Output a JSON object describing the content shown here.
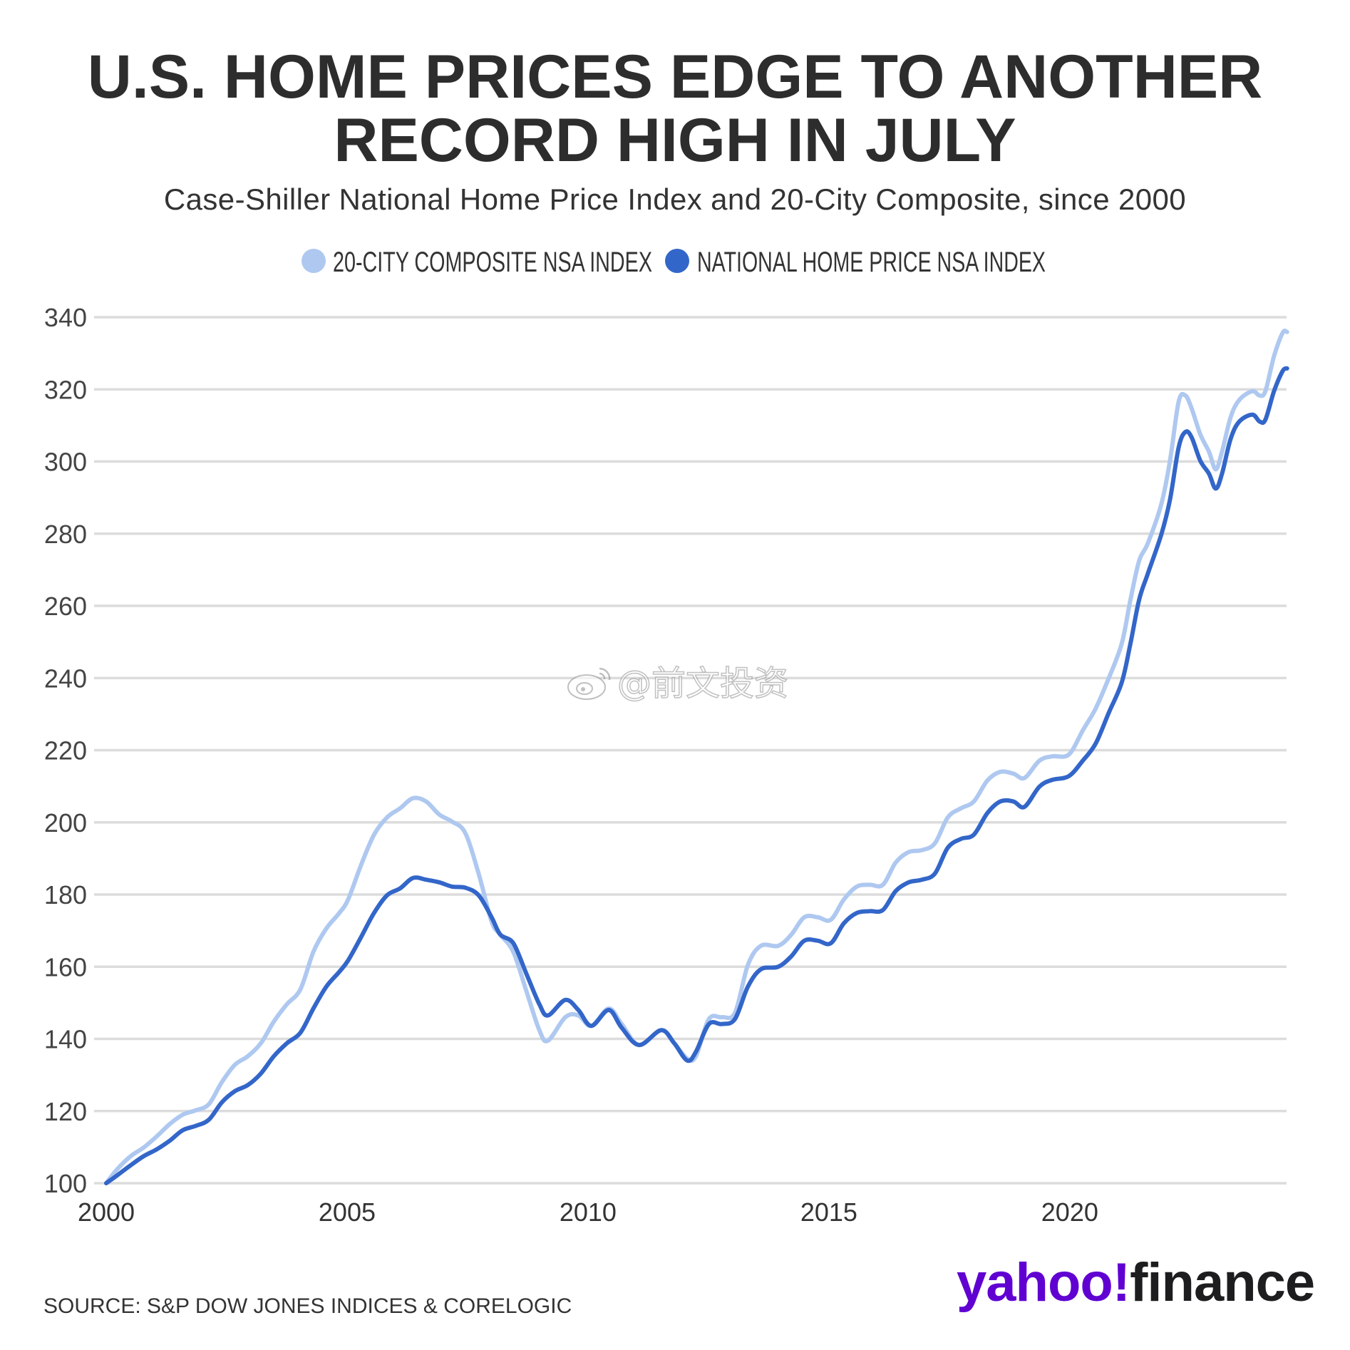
{
  "source": "SOURCE: S&P DOW JONES INDICES & CORELOGIC",
  "logo": {
    "brand": "yahoo!",
    "product": "finance",
    "brand_color": "#6001d2",
    "icon": "yahoo-finance-logo"
  },
  "watermark": {
    "text": "@前文投资",
    "icon": "weibo-icon"
  },
  "chart_data": {
    "type": "line",
    "title": "U.S. HOME PRICES EDGE TO ANOTHER RECORD HIGH IN JULY",
    "subtitle": "Case-Shiller National Home Price Index and 20-City Composite, since 2000",
    "xlim": [
      2000,
      2024.5
    ],
    "ylim": [
      100,
      340
    ],
    "x_ticks": [
      2000,
      2005,
      2010,
      2015,
      2020
    ],
    "y_ticks": [
      100,
      120,
      140,
      160,
      180,
      200,
      220,
      240,
      260,
      280,
      300,
      320,
      340
    ],
    "grid": "horizontal",
    "legend": "top-center",
    "x": [
      2000.0,
      2000.23,
      2000.51,
      2000.78,
      2001.05,
      2001.32,
      2001.59,
      2001.86,
      2002.13,
      2002.4,
      2002.67,
      2002.94,
      2003.21,
      2003.48,
      2003.75,
      2004.03,
      2004.3,
      2004.57,
      2004.84,
      2005.02,
      2005.29,
      2005.56,
      2005.83,
      2006.1,
      2006.37,
      2006.64,
      2006.91,
      2007.18,
      2007.45,
      2007.73,
      2008.0,
      2008.18,
      2008.45,
      2008.72,
      2008.99,
      2009.17,
      2009.53,
      2009.8,
      2010.07,
      2010.43,
      2010.7,
      2011.06,
      2011.52,
      2011.79,
      2012.06,
      2012.24,
      2012.51,
      2012.78,
      2013.05,
      2013.32,
      2013.59,
      2013.95,
      2014.22,
      2014.49,
      2014.77,
      2015.04,
      2015.31,
      2015.58,
      2015.85,
      2016.12,
      2016.39,
      2016.66,
      2016.93,
      2017.2,
      2017.47,
      2017.74,
      2018.01,
      2018.29,
      2018.56,
      2018.83,
      2019.06,
      2019.37,
      2019.64,
      2019.98,
      2020.27,
      2020.54,
      2020.81,
      2021.08,
      2021.26,
      2021.44,
      2021.62,
      2021.9,
      2022.08,
      2022.26,
      2022.4,
      2022.53,
      2022.71,
      2022.89,
      2023.03,
      2023.16,
      2023.34,
      2023.52,
      2023.79,
      2023.94,
      2024.06,
      2024.24,
      2024.42,
      2024.51
    ],
    "series": [
      {
        "name": "20-CITY COMPOSITE NSA INDEX",
        "color": "#aec8f0",
        "values": [
          100.0,
          103.9,
          107.5,
          109.9,
          113.0,
          116.4,
          119.0,
          120.2,
          121.9,
          128.0,
          132.8,
          135.2,
          138.8,
          144.8,
          149.6,
          153.7,
          164.1,
          170.6,
          174.9,
          178.6,
          188.2,
          196.6,
          201.4,
          203.9,
          206.7,
          205.8,
          202.2,
          200.2,
          197.1,
          185.8,
          172.5,
          168.9,
          164.1,
          153.3,
          142.4,
          139.5,
          146.0,
          146.5,
          143.6,
          148.4,
          144.1,
          138.3,
          142.4,
          138.8,
          134.5,
          135.2,
          145.5,
          146.0,
          147.2,
          160.5,
          165.8,
          165.8,
          168.9,
          173.7,
          173.7,
          173.0,
          178.6,
          182.2,
          182.7,
          182.7,
          188.9,
          191.8,
          192.3,
          194.2,
          201.4,
          203.9,
          205.8,
          211.6,
          214.0,
          213.5,
          212.3,
          217.1,
          218.3,
          218.8,
          225.5,
          231.6,
          240.0,
          249.6,
          261.7,
          272.5,
          277.3,
          288.2,
          300.2,
          316.6,
          318.3,
          314.7,
          307.5,
          302.7,
          297.8,
          302.7,
          312.3,
          317.1,
          319.5,
          318.3,
          319.5,
          329.2,
          335.7,
          335.9
        ]
      },
      {
        "name": "NATIONAL HOME PRICE NSA INDEX",
        "color": "#3366c9",
        "values": [
          100.0,
          102.2,
          105.0,
          107.5,
          109.4,
          111.8,
          114.7,
          115.9,
          117.6,
          122.4,
          125.5,
          127.2,
          130.4,
          135.2,
          138.8,
          141.7,
          148.4,
          154.5,
          158.6,
          161.7,
          168.2,
          174.9,
          179.8,
          181.7,
          184.6,
          184.1,
          183.4,
          182.2,
          181.9,
          179.8,
          173.7,
          168.9,
          166.5,
          158.1,
          149.6,
          146.5,
          150.8,
          148.0,
          143.6,
          148.0,
          143.1,
          138.3,
          142.4,
          138.8,
          134.0,
          136.4,
          144.1,
          144.1,
          145.5,
          154.5,
          159.3,
          160.0,
          162.9,
          167.2,
          167.2,
          166.5,
          172.0,
          174.9,
          175.4,
          175.7,
          181.0,
          183.4,
          184.1,
          185.8,
          193.0,
          195.4,
          196.6,
          202.6,
          205.8,
          205.8,
          204.3,
          209.9,
          211.8,
          212.8,
          217.1,
          221.9,
          230.4,
          238.8,
          249.6,
          261.7,
          268.9,
          279.8,
          289.4,
          303.9,
          308.2,
          306.7,
          300.2,
          296.6,
          292.5,
          296.6,
          306.3,
          311.1,
          313.0,
          311.1,
          311.6,
          319.5,
          325.1,
          325.8
        ]
      }
    ]
  }
}
